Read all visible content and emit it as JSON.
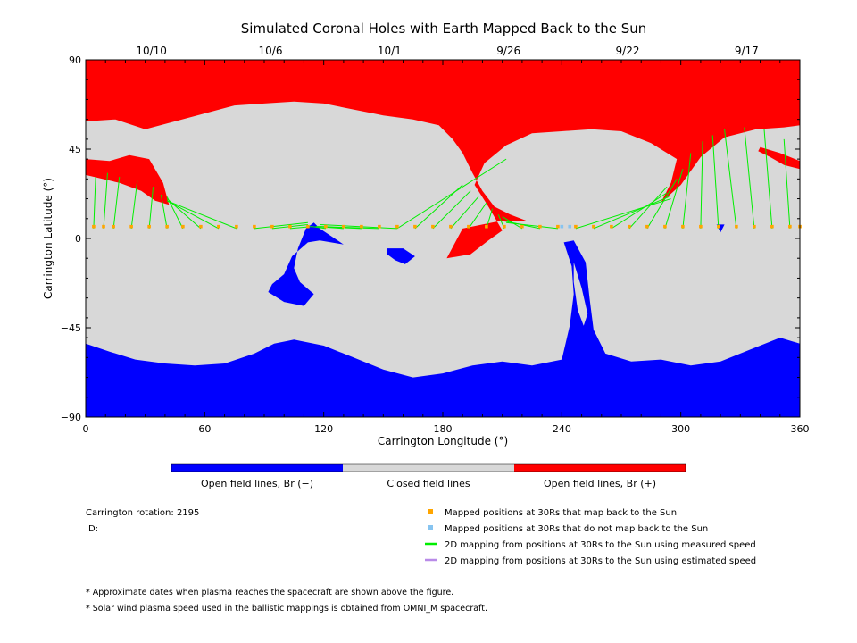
{
  "chart_data": {
    "type": "map",
    "title": "Simulated Coronal Holes with Earth Mapped Back to the Sun",
    "xlabel": "Carrington Longitude (°)",
    "ylabel": "Carrington Latitude (°)",
    "xlim": [
      0,
      360
    ],
    "ylim": [
      -90,
      90
    ],
    "xticks": [
      "0",
      "60",
      "120",
      "180",
      "240",
      "300",
      "360"
    ],
    "yticks": [
      "90",
      "45",
      "0",
      "−45",
      "−90"
    ],
    "top_dates": [
      {
        "label": "10/10",
        "lon": 30
      },
      {
        "label": "10/6",
        "lon": 90
      },
      {
        "label": "10/1",
        "lon": 150
      },
      {
        "label": "9/26",
        "lon": 210
      },
      {
        "label": "9/22",
        "lon": 270
      },
      {
        "label": "9/17",
        "lon": 330
      }
    ],
    "colors": {
      "open_negative": "#0000ff",
      "closed": "#d8d8d8",
      "open_positive": "#ff0000",
      "mapped": "#ffa500",
      "not_mapped": "#87c4f0",
      "measured": "#00ee00",
      "estimated": "#b98be8"
    },
    "colorbar": [
      {
        "label": "Open field lines, Br (−)",
        "color": "#0000ff"
      },
      {
        "label": "Closed field lines",
        "color": "#d8d8d8"
      },
      {
        "label": "Open field lines, Br (+)",
        "color": "#ff0000"
      }
    ],
    "region_outlines": {
      "north_positive": [
        [
          0,
          59
        ],
        [
          15,
          60
        ],
        [
          30,
          55
        ],
        [
          45,
          59
        ],
        [
          60,
          63
        ],
        [
          75,
          67
        ],
        [
          90,
          68
        ],
        [
          105,
          69
        ],
        [
          120,
          68
        ],
        [
          135,
          65
        ],
        [
          150,
          62
        ],
        [
          165,
          60
        ],
        [
          178,
          57
        ],
        [
          185,
          50
        ],
        [
          190,
          43
        ],
        [
          195,
          33
        ],
        [
          200,
          24
        ],
        [
          206,
          16
        ],
        [
          214,
          12
        ],
        [
          222,
          9
        ],
        [
          210,
          9
        ],
        [
          200,
          7
        ],
        [
          190,
          5
        ],
        [
          182,
          -10
        ],
        [
          194,
          -8
        ],
        [
          203,
          -1
        ],
        [
          210,
          4
        ],
        [
          203,
          16
        ],
        [
          196,
          27
        ],
        [
          201,
          38
        ],
        [
          212,
          47
        ],
        [
          225,
          53
        ],
        [
          240,
          54
        ],
        [
          255,
          55
        ],
        [
          270,
          54
        ],
        [
          285,
          48
        ],
        [
          298,
          40
        ],
        [
          295,
          28
        ],
        [
          290,
          18
        ],
        [
          300,
          27
        ],
        [
          310,
          41
        ],
        [
          322,
          51
        ],
        [
          338,
          55
        ],
        [
          352,
          56
        ],
        [
          360,
          57
        ],
        [
          360,
          90
        ],
        [
          0,
          90
        ]
      ],
      "west_lobe": [
        [
          0,
          40
        ],
        [
          12,
          39
        ],
        [
          22,
          42
        ],
        [
          32,
          40
        ],
        [
          39,
          28
        ],
        [
          42,
          17
        ],
        [
          35,
          19
        ],
        [
          28,
          24
        ],
        [
          17,
          28
        ],
        [
          0,
          32
        ]
      ],
      "east_lobe": [
        [
          340,
          46
        ],
        [
          350,
          43
        ],
        [
          360,
          39
        ],
        [
          360,
          35
        ],
        [
          352,
          37
        ],
        [
          345,
          41
        ],
        [
          339,
          44
        ]
      ],
      "south_negative": [
        [
          0,
          -53
        ],
        [
          12,
          -57
        ],
        [
          25,
          -61
        ],
        [
          40,
          -63
        ],
        [
          55,
          -64
        ],
        [
          70,
          -63
        ],
        [
          85,
          -58
        ],
        [
          95,
          -53
        ],
        [
          105,
          -51
        ],
        [
          120,
          -54
        ],
        [
          135,
          -60
        ],
        [
          150,
          -66
        ],
        [
          165,
          -70
        ],
        [
          180,
          -68
        ],
        [
          195,
          -64
        ],
        [
          210,
          -62
        ],
        [
          225,
          -64
        ],
        [
          240,
          -61
        ],
        [
          244,
          -44
        ],
        [
          246,
          -28
        ],
        [
          245,
          -14
        ],
        [
          241,
          -2
        ],
        [
          246,
          -1
        ],
        [
          252,
          -12
        ],
        [
          254,
          -30
        ],
        [
          256,
          -46
        ],
        [
          262,
          -58
        ],
        [
          275,
          -62
        ],
        [
          290,
          -61
        ],
        [
          305,
          -64
        ],
        [
          320,
          -62
        ],
        [
          335,
          -56
        ],
        [
          350,
          -50
        ],
        [
          360,
          -53
        ],
        [
          360,
          -90
        ],
        [
          0,
          -90
        ]
      ],
      "cavity": [
        [
          246,
          -12
        ],
        [
          250,
          -25
        ],
        [
          253,
          -38
        ],
        [
          251,
          -44
        ],
        [
          248,
          -36
        ],
        [
          246,
          -22
        ]
      ],
      "arm": [
        [
          92,
          -27
        ],
        [
          100,
          -32
        ],
        [
          110,
          -34
        ],
        [
          115,
          -28
        ],
        [
          108,
          -22
        ],
        [
          105,
          -15
        ],
        [
          107,
          -5
        ],
        [
          111,
          5
        ],
        [
          115,
          8
        ],
        [
          118,
          5
        ],
        [
          130,
          -3
        ],
        [
          118,
          -1
        ],
        [
          112,
          -2
        ],
        [
          104,
          -9
        ],
        [
          100,
          -18
        ],
        [
          94,
          -23
        ]
      ],
      "island": [
        [
          152,
          -5
        ],
        [
          160,
          -5
        ],
        [
          166,
          -9
        ],
        [
          161,
          -13
        ],
        [
          156,
          -11
        ],
        [
          152,
          -8
        ]
      ],
      "spot": [
        [
          318,
          7
        ],
        [
          322,
          7
        ],
        [
          320,
          3
        ]
      ]
    },
    "mapped_positions_lon": [
      4,
      9,
      14,
      23,
      32,
      41,
      49,
      58,
      67,
      76,
      85,
      94,
      103,
      112,
      121,
      130,
      139,
      148,
      157,
      166,
      175,
      184,
      193,
      202,
      211,
      220,
      229,
      238,
      247,
      256,
      265,
      274,
      283,
      292,
      301,
      310,
      319,
      328,
      337,
      346,
      355,
      360
    ],
    "mapped_positions_lat": 6,
    "not_mapped_positions_lon": [
      240,
      244
    ],
    "measured_mapping_lines": [
      [
        0,
        5,
        0,
        31
      ],
      [
        4,
        5,
        5,
        31
      ],
      [
        9,
        5,
        11,
        33
      ],
      [
        14,
        5,
        17,
        31
      ],
      [
        23,
        5,
        26,
        29
      ],
      [
        32,
        5,
        34,
        26
      ],
      [
        41,
        5,
        38,
        22
      ],
      [
        49,
        5,
        41,
        21
      ],
      [
        58,
        5,
        41,
        20
      ],
      [
        67,
        5,
        41,
        19
      ],
      [
        76,
        5,
        41,
        19
      ],
      [
        85,
        5,
        112,
        8
      ],
      [
        94,
        5,
        112,
        7
      ],
      [
        103,
        5,
        114,
        6
      ],
      [
        121,
        5,
        114,
        6
      ],
      [
        130,
        5,
        116,
        6
      ],
      [
        139,
        5,
        117,
        6
      ],
      [
        148,
        5,
        118,
        6
      ],
      [
        157,
        5,
        118,
        7
      ],
      [
        157,
        5,
        212,
        40
      ],
      [
        166,
        5,
        190,
        27
      ],
      [
        175,
        5,
        194,
        24
      ],
      [
        184,
        5,
        198,
        21
      ],
      [
        193,
        5,
        202,
        18
      ],
      [
        202,
        5,
        205,
        15
      ],
      [
        211,
        5,
        208,
        12
      ],
      [
        220,
        5,
        210,
        11
      ],
      [
        229,
        5,
        210,
        9
      ],
      [
        238,
        5,
        212,
        8
      ],
      [
        247,
        5,
        295,
        20
      ],
      [
        256,
        5,
        294,
        21
      ],
      [
        265,
        5,
        293,
        23
      ],
      [
        274,
        5,
        293,
        26
      ],
      [
        283,
        5,
        298,
        30
      ],
      [
        292,
        5,
        301,
        35
      ],
      [
        301,
        5,
        305,
        43
      ],
      [
        310,
        5,
        311,
        49
      ],
      [
        319,
        5,
        316,
        52
      ],
      [
        328,
        5,
        322,
        55
      ],
      [
        337,
        5,
        332,
        56
      ],
      [
        346,
        5,
        342,
        55
      ],
      [
        355,
        5,
        352,
        50
      ],
      [
        360,
        5,
        360,
        43
      ]
    ]
  },
  "legend": {
    "carrington_rotation": "Carrington rotation: 2195",
    "id": "ID:",
    "items": [
      {
        "label": "Mapped positions at 30Rs that map back to the Sun",
        "kind": "square",
        "color": "#ffa500"
      },
      {
        "label": "Mapped positions at 30Rs that do not map back to the Sun",
        "kind": "square",
        "color": "#87c4f0"
      },
      {
        "label": "2D mapping from positions at 30Rs to the Sun using measured speed",
        "kind": "line",
        "color": "#00ee00"
      },
      {
        "label": "2D mapping from positions at 30Rs to the Sun using estimated speed",
        "kind": "line",
        "color": "#b98be8"
      }
    ]
  },
  "notes": [
    "* Approximate dates when plasma reaches the spacecraft are shown above the figure.",
    "* Solar wind plasma speed used in the ballistic mappings is obtained from OMNI_M spacecraft."
  ]
}
